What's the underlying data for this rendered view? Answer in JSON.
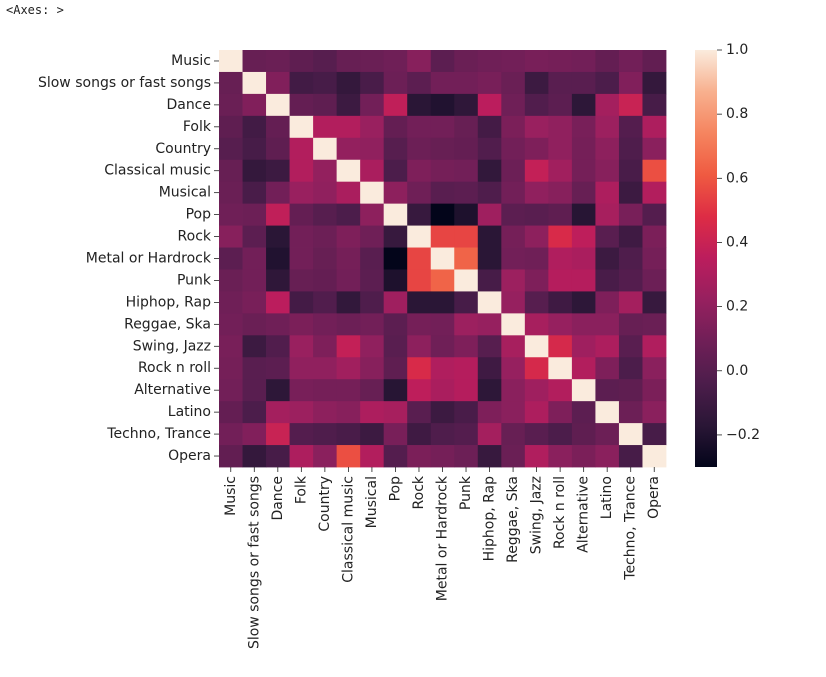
{
  "output_label": "<Axes: >",
  "chart_data": {
    "type": "heatmap",
    "labels": [
      "Music",
      "Slow songs or fast songs",
      "Dance",
      "Folk",
      "Country",
      "Classical music",
      "Musical",
      "Pop",
      "Rock",
      "Metal or Hardrock",
      "Punk",
      "Hiphop, Rap",
      "Reggae, Ska",
      "Swing, Jazz",
      "Rock n roll",
      "Alternative",
      "Latino",
      "Techno, Trance",
      "Opera"
    ],
    "matrix": [
      [
        1.0,
        0.06,
        0.07,
        0.03,
        0.0,
        0.06,
        0.07,
        0.09,
        0.17,
        0.02,
        0.07,
        0.09,
        0.1,
        0.12,
        0.11,
        0.1,
        0.05,
        0.1,
        0.04
      ],
      [
        0.06,
        1.0,
        0.15,
        -0.08,
        -0.06,
        -0.13,
        -0.05,
        0.08,
        0.02,
        0.1,
        0.1,
        0.12,
        0.07,
        -0.1,
        0.01,
        0.01,
        -0.04,
        0.15,
        -0.13
      ],
      [
        0.07,
        0.15,
        1.0,
        0.05,
        0.03,
        -0.1,
        0.1,
        0.37,
        -0.17,
        -0.2,
        -0.15,
        0.35,
        0.09,
        -0.02,
        0.02,
        -0.16,
        0.27,
        0.4,
        -0.06
      ],
      [
        0.03,
        -0.08,
        0.05,
        1.0,
        0.32,
        0.32,
        0.23,
        0.05,
        0.1,
        0.1,
        0.06,
        -0.07,
        0.13,
        0.23,
        0.2,
        0.12,
        0.24,
        -0.01,
        0.3
      ],
      [
        0.0,
        -0.06,
        0.03,
        0.32,
        1.0,
        0.21,
        0.2,
        0.0,
        0.08,
        0.06,
        0.05,
        -0.02,
        0.1,
        0.14,
        0.2,
        0.11,
        0.19,
        -0.03,
        0.18
      ],
      [
        0.06,
        -0.13,
        -0.1,
        0.32,
        0.21,
        1.0,
        0.29,
        -0.04,
        0.14,
        0.11,
        0.1,
        -0.14,
        0.08,
        0.38,
        0.26,
        0.11,
        0.17,
        -0.05,
        0.58
      ],
      [
        0.07,
        -0.05,
        0.1,
        0.23,
        0.2,
        0.29,
        1.0,
        0.19,
        0.09,
        0.01,
        0.02,
        -0.03,
        0.1,
        0.2,
        0.17,
        0.06,
        0.3,
        -0.1,
        0.32
      ],
      [
        0.09,
        0.08,
        0.37,
        0.05,
        0.0,
        -0.04,
        0.19,
        1.0,
        -0.12,
        -0.3,
        -0.21,
        0.25,
        0.02,
        0.01,
        0.03,
        -0.18,
        0.28,
        0.12,
        -0.01
      ],
      [
        0.17,
        0.02,
        -0.17,
        0.1,
        0.08,
        0.14,
        0.09,
        -0.12,
        1.0,
        0.55,
        0.55,
        -0.17,
        0.11,
        0.19,
        0.46,
        0.36,
        0.01,
        -0.09,
        0.13
      ],
      [
        0.02,
        0.1,
        -0.2,
        0.1,
        0.06,
        0.11,
        0.01,
        -0.3,
        0.55,
        1.0,
        0.64,
        -0.17,
        0.1,
        0.09,
        0.31,
        0.29,
        -0.1,
        -0.03,
        0.11
      ],
      [
        0.07,
        0.1,
        -0.15,
        0.06,
        0.05,
        0.1,
        0.02,
        -0.21,
        0.55,
        0.64,
        1.0,
        -0.06,
        0.24,
        0.14,
        0.33,
        0.33,
        -0.05,
        -0.01,
        0.08
      ],
      [
        0.09,
        0.12,
        0.35,
        -0.07,
        -0.02,
        -0.14,
        -0.03,
        0.25,
        -0.17,
        -0.17,
        -0.06,
        1.0,
        0.22,
        0.0,
        -0.09,
        -0.16,
        0.14,
        0.27,
        -0.12
      ],
      [
        0.1,
        0.07,
        0.09,
        0.13,
        0.1,
        0.08,
        0.1,
        0.02,
        0.11,
        0.1,
        0.24,
        0.22,
        1.0,
        0.28,
        0.22,
        0.18,
        0.18,
        0.06,
        0.07
      ],
      [
        0.12,
        -0.1,
        -0.02,
        0.23,
        0.14,
        0.38,
        0.2,
        0.01,
        0.19,
        0.09,
        0.14,
        0.0,
        0.28,
        1.0,
        0.45,
        0.25,
        0.3,
        0.01,
        0.31
      ],
      [
        0.11,
        0.01,
        0.02,
        0.2,
        0.2,
        0.26,
        0.17,
        0.03,
        0.46,
        0.31,
        0.33,
        -0.09,
        0.22,
        0.45,
        1.0,
        0.32,
        0.14,
        -0.04,
        0.18
      ],
      [
        0.1,
        0.01,
        -0.16,
        0.12,
        0.11,
        0.11,
        0.06,
        -0.18,
        0.36,
        0.29,
        0.33,
        -0.16,
        0.18,
        0.25,
        0.32,
        1.0,
        0.02,
        0.03,
        0.13
      ],
      [
        0.05,
        -0.04,
        0.27,
        0.24,
        0.19,
        0.17,
        0.3,
        0.28,
        0.01,
        -0.1,
        -0.05,
        0.14,
        0.18,
        0.3,
        0.14,
        0.02,
        1.0,
        0.08,
        0.18
      ],
      [
        0.1,
        0.15,
        0.4,
        -0.01,
        -0.03,
        -0.05,
        -0.1,
        0.12,
        -0.09,
        -0.03,
        -0.01,
        0.27,
        0.06,
        0.01,
        -0.04,
        0.03,
        0.08,
        1.0,
        -0.06
      ],
      [
        0.04,
        -0.13,
        -0.06,
        0.3,
        0.18,
        0.58,
        0.32,
        -0.01,
        0.13,
        0.11,
        0.08,
        -0.12,
        0.07,
        0.31,
        0.18,
        0.13,
        0.18,
        -0.06,
        1.0
      ]
    ],
    "vmin": -0.3,
    "vmax": 1.0,
    "colormap": "rocket",
    "colorbar_ticks": [
      "1.0",
      "0.8",
      "0.6",
      "0.4",
      "0.2",
      "0.0",
      "−0.2"
    ],
    "colorbar_tick_values": [
      1.0,
      0.8,
      0.6,
      0.4,
      0.2,
      0.0,
      -0.2
    ],
    "colorbar_placement": "right",
    "grid": false
  }
}
